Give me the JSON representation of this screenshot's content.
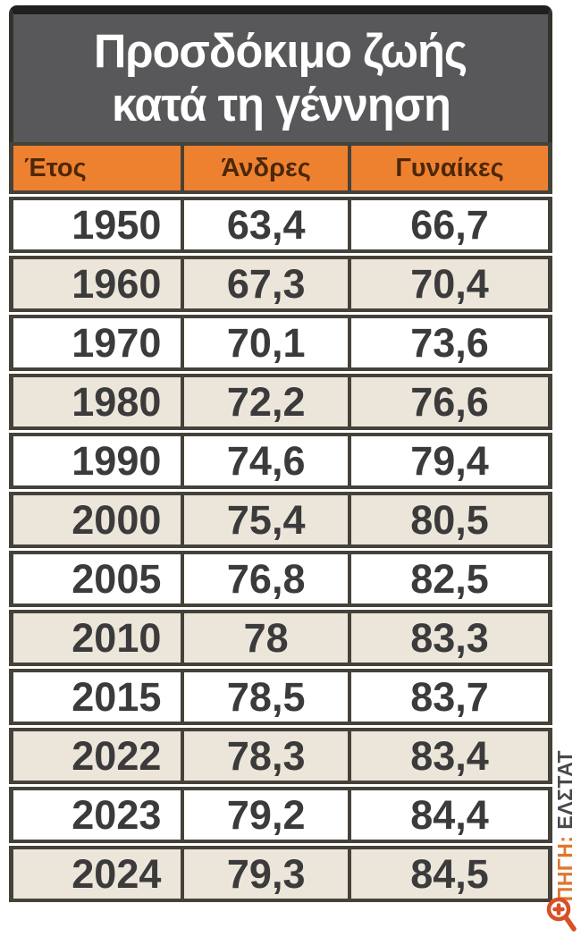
{
  "title": {
    "line1": "Προσδόκιμο ζωής",
    "line2": "κατά τη γέννηση"
  },
  "table": {
    "columns": [
      "Έτος",
      "Άνδρες",
      "Γυναίκες"
    ],
    "rows": [
      [
        "1950",
        "63,4",
        "66,7"
      ],
      [
        "1960",
        "67,3",
        "70,4"
      ],
      [
        "1970",
        "70,1",
        "73,6"
      ],
      [
        "1980",
        "72,2",
        "76,6"
      ],
      [
        "1990",
        "74,6",
        "79,4"
      ],
      [
        "2000",
        "75,4",
        "80,5"
      ],
      [
        "2005",
        "76,8",
        "82,5"
      ],
      [
        "2010",
        "78",
        "83,3"
      ],
      [
        "2015",
        "78,5",
        "83,7"
      ],
      [
        "2022",
        "78,3",
        "83,4"
      ],
      [
        "2023",
        "79,2",
        "84,4"
      ],
      [
        "2024",
        "79,3",
        "84,5"
      ]
    ]
  },
  "source": {
    "label": "ΠΗΓΗ:",
    "value": " ΕΛΣΤΑΤ"
  },
  "icons": {
    "zoom_in": "magnifier-plus-icon"
  },
  "colors": {
    "title_bg": "#58585A",
    "header_bg": "#EE8130",
    "header_text": "#4D2708",
    "alt_row_bg": "#ECE5D9",
    "border": "#45423A",
    "data_text": "#3B3B3B",
    "source_label": "#E0762F",
    "zoom_icon": "#D65127"
  },
  "chart_data": {
    "type": "table",
    "title": "Προσδόκιμο ζωής κατά τη γέννηση",
    "columns": [
      "Έτος",
      "Άνδρες",
      "Γυναίκες"
    ],
    "categories": [
      1950,
      1960,
      1970,
      1980,
      1990,
      2000,
      2005,
      2010,
      2015,
      2022,
      2023,
      2024
    ],
    "series": [
      {
        "name": "Άνδρες",
        "values": [
          63.4,
          67.3,
          70.1,
          72.2,
          74.6,
          75.4,
          76.8,
          78,
          78.5,
          78.3,
          79.2,
          79.3
        ]
      },
      {
        "name": "Γυναίκες",
        "values": [
          66.7,
          70.4,
          73.6,
          76.6,
          79.4,
          80.5,
          82.5,
          83.3,
          83.7,
          83.4,
          84.4,
          84.5
        ]
      }
    ],
    "source": "ΠΗΓΗ: ΕΛΣΤΑΤ",
    "decimal_separator": ","
  }
}
